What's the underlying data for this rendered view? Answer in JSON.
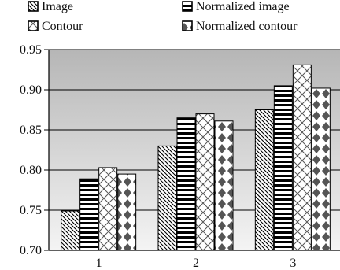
{
  "chart_data": {
    "type": "bar",
    "categories": [
      "1",
      "2",
      "3"
    ],
    "series": [
      {
        "name": "Image",
        "values": [
          0.749,
          0.83,
          0.875
        ],
        "pattern": "diagonal-hatch"
      },
      {
        "name": "Normalized image",
        "values": [
          0.789,
          0.865,
          0.905
        ],
        "pattern": "horizontal-stripes"
      },
      {
        "name": "Contour",
        "values": [
          0.803,
          0.87,
          0.931
        ],
        "pattern": "crosshatch"
      },
      {
        "name": "Normalized contour",
        "values": [
          0.795,
          0.861,
          0.902
        ],
        "pattern": "diamonds"
      }
    ],
    "title": "",
    "xlabel": "",
    "ylabel": "",
    "ylim": [
      0.7,
      0.95
    ],
    "yticks": [
      "0.95",
      "0.90",
      "0.85",
      "0.80",
      "0.75",
      "0.70"
    ],
    "legend": {
      "position": "top",
      "columns": 2
    },
    "grid": "horizontal",
    "plot_background": "#c0c0c0"
  }
}
